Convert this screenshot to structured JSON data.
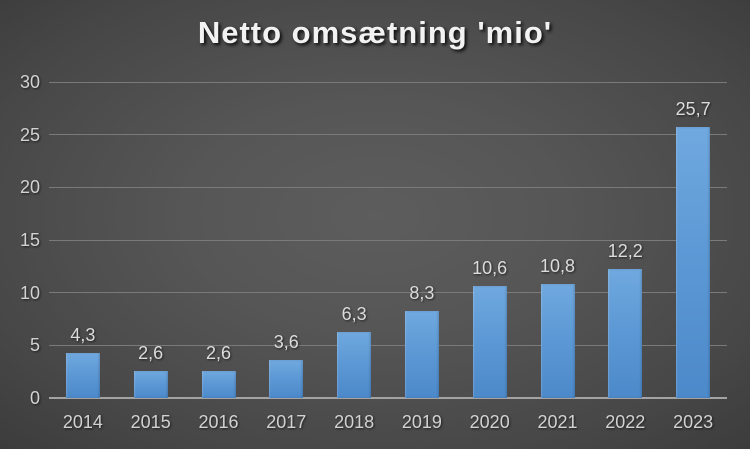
{
  "chart_data": {
    "type": "bar",
    "title": "Netto omsætning 'mio'",
    "categories": [
      "2014",
      "2015",
      "2016",
      "2017",
      "2018",
      "2019",
      "2020",
      "2021",
      "2022",
      "2023"
    ],
    "values": [
      4.3,
      2.6,
      2.6,
      3.6,
      6.3,
      8.3,
      10.6,
      10.8,
      12.2,
      25.7
    ],
    "value_labels": [
      "4,3",
      "2,6",
      "2,6",
      "3,6",
      "6,3",
      "8,3",
      "10,6",
      "10,8",
      "12,2",
      "25,7"
    ],
    "xlabel": "",
    "ylabel": "",
    "ylim": [
      0,
      30
    ],
    "yticks": [
      0,
      5,
      10,
      15,
      20,
      25,
      30
    ],
    "grid": true,
    "legend": false,
    "decimal_separator": ",",
    "colors": {
      "bar_top": "#70a9df",
      "bar_bottom": "#4c89ca",
      "background_center": "#595959",
      "background_edge": "#262626",
      "gridline": "#7a7a7a",
      "axis_line": "#a3a3a3",
      "tick_label": "#d2d2d2",
      "value_label": "#dcdcdc",
      "title": "#f2f2f2"
    }
  }
}
